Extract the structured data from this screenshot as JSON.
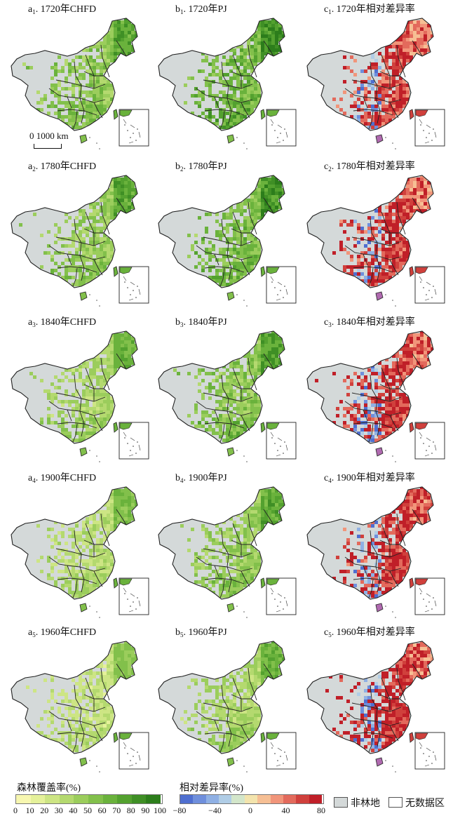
{
  "panels": [
    [
      {
        "prefix": "a",
        "sub": "1",
        "text": ". 1720年CHFD",
        "kind": "forest",
        "level": 0.62
      },
      {
        "prefix": "b",
        "sub": "1",
        "text": ". 1720年PJ",
        "kind": "forest",
        "level": 0.78
      },
      {
        "prefix": "c",
        "sub": "1",
        "text": ". 1720年相对差异率",
        "kind": "diff",
        "level": 0.7
      }
    ],
    [
      {
        "prefix": "a",
        "sub": "2",
        "text": ". 1780年CHFD",
        "kind": "forest",
        "level": 0.58
      },
      {
        "prefix": "b",
        "sub": "2",
        "text": ". 1780年PJ",
        "kind": "forest",
        "level": 0.72
      },
      {
        "prefix": "c",
        "sub": "2",
        "text": ". 1780年相对差异率",
        "kind": "diff",
        "level": 0.72
      }
    ],
    [
      {
        "prefix": "a",
        "sub": "3",
        "text": ". 1840年CHFD",
        "kind": "forest",
        "level": 0.5
      },
      {
        "prefix": "b",
        "sub": "3",
        "text": ". 1840年PJ",
        "kind": "forest",
        "level": 0.65
      },
      {
        "prefix": "c",
        "sub": "3",
        "text": ". 1840年相对差异率",
        "kind": "diff",
        "level": 0.74
      }
    ],
    [
      {
        "prefix": "a",
        "sub": "4",
        "text": ". 1900年CHFD",
        "kind": "forest",
        "level": 0.42
      },
      {
        "prefix": "b",
        "sub": "4",
        "text": ". 1900年PJ",
        "kind": "forest",
        "level": 0.58
      },
      {
        "prefix": "c",
        "sub": "4",
        "text": ". 1900年相对差异率",
        "kind": "diff",
        "level": 0.76
      }
    ],
    [
      {
        "prefix": "a",
        "sub": "5",
        "text": ". 1960年CHFD",
        "kind": "forest",
        "level": 0.35
      },
      {
        "prefix": "b",
        "sub": "5",
        "text": ". 1960年PJ",
        "kind": "forest",
        "level": 0.5
      },
      {
        "prefix": "c",
        "sub": "5",
        "text": ". 1960年相对差异率",
        "kind": "diff",
        "level": 0.82
      }
    ]
  ],
  "scale_bar": {
    "label": "0  1000 km"
  },
  "legend_forest": {
    "title": "森林覆盖率(%)",
    "ticks": [
      "0",
      "10",
      "20",
      "30",
      "40",
      "50",
      "60",
      "70",
      "80",
      "90",
      "100"
    ],
    "colors": [
      "#f7f7b0",
      "#e5f19a",
      "#cde584",
      "#b4d96f",
      "#9bcd5c",
      "#82c04b",
      "#6ab23c",
      "#53a12f",
      "#3f8f25",
      "#2c7d1b"
    ]
  },
  "legend_diff": {
    "title": "相对差异率(%)",
    "ticks": [
      "−80",
      "−40",
      "0",
      "40",
      "80"
    ],
    "colors": [
      "#4f6fd0",
      "#6f8fdc",
      "#8fb0e4",
      "#b0cde6",
      "#d3e6ca",
      "#f3e4ad",
      "#f6bf94",
      "#f1957a",
      "#e36a5c",
      "#d0403c",
      "#c01f28"
    ]
  },
  "legend_other": {
    "nonforest_label": "非林地",
    "nodata_label": "无数据区",
    "nonforest_color": "#d4d9d9",
    "nodata_color": "#ffffff"
  }
}
